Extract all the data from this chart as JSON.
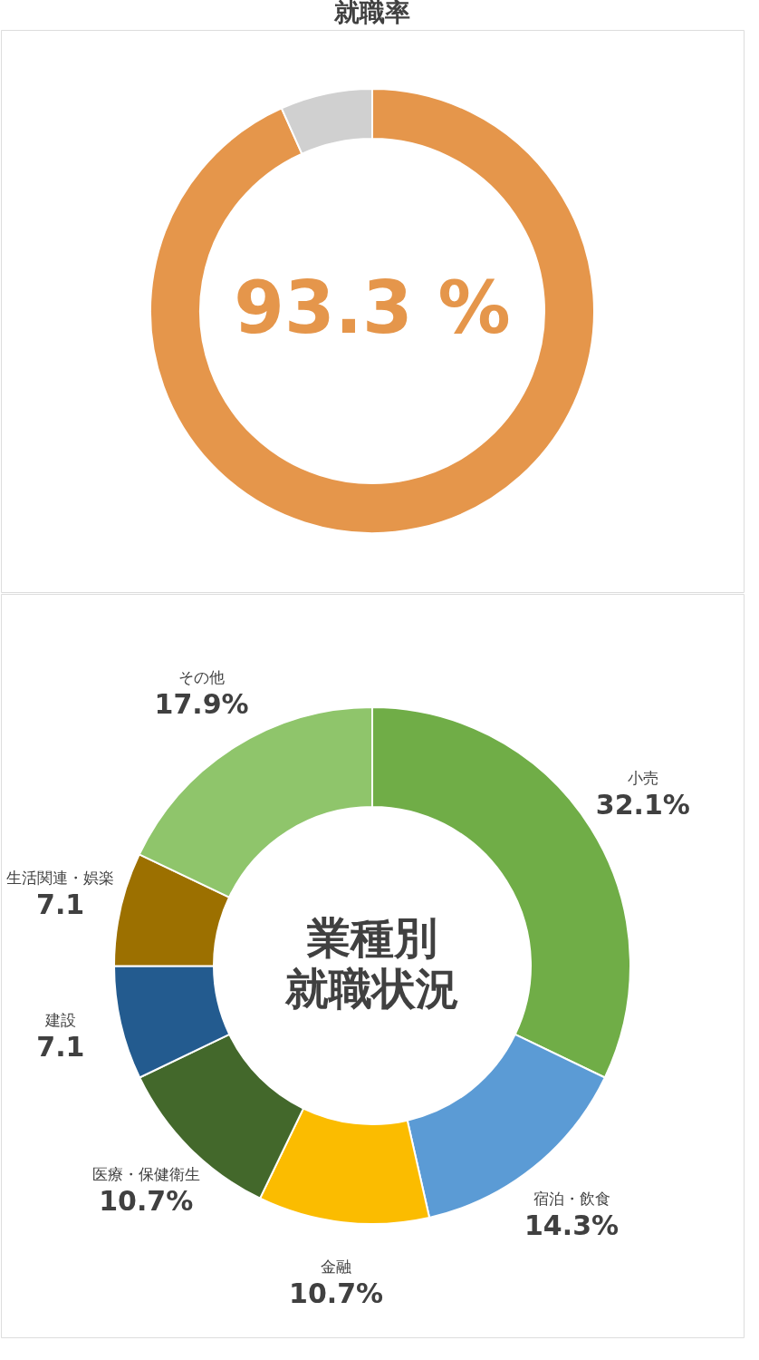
{
  "chart_data": [
    {
      "type": "donut",
      "title": "就職率",
      "categories": [
        null,
        null
      ],
      "values": [
        93.3,
        6.7
      ],
      "colors": [
        "#e5964b",
        "#d0d0d0"
      ],
      "annotations": [
        "93.3 %"
      ]
    },
    {
      "type": "donut",
      "title": "業種別就職状況",
      "categories": [
        "小売",
        "宿泊・飲食",
        "金融",
        "医療・保健衛生",
        "建設",
        "生活関連・娯楽",
        "その他"
      ],
      "values": [
        32.1,
        14.3,
        10.7,
        10.7,
        7.1,
        7.1,
        17.9
      ],
      "colors": [
        "#70ad47",
        "#5b9bd5",
        "#fbbc00",
        "#43682b",
        "#235b8f",
        "#9c7000",
        "#8fc56b"
      ],
      "value_labels": [
        "32.1%",
        "14.3%",
        "10.7%",
        "10.7%",
        "7.1",
        "7.1",
        "17.9%"
      ]
    }
  ]
}
